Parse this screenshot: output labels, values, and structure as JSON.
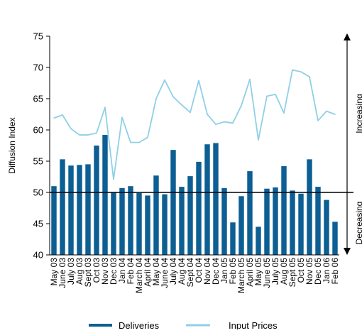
{
  "chart_data": {
    "type": "bar",
    "title": "",
    "xlabel": "",
    "ylabel": "Diffusion Index",
    "ylim": [
      40,
      75
    ],
    "yticks": [
      40,
      45,
      50,
      55,
      60,
      65,
      70,
      75
    ],
    "baseline": 50,
    "grid": false,
    "legend_position": "bottom",
    "categories": [
      "May 03",
      "June 03",
      "July 03",
      "Aug 03",
      "Sept 03",
      "Oct 03",
      "Nov 03",
      "Dec 03",
      "Jan 04",
      "Feb 04",
      "March 04",
      "April 04",
      "May 04",
      "June 04",
      "July 04",
      "Aug 04",
      "Sept 04",
      "Oct 04",
      "Nov 04",
      "Dec 04",
      "Jan 05",
      "Feb 05",
      "March 05",
      "April 05",
      "May 05",
      "June 05",
      "July 05",
      "Aug 05",
      "Sept 05",
      "Oct 05",
      "Nov 05",
      "Dec 05",
      "Jan 06",
      "Feb 06"
    ],
    "series": [
      {
        "name": "Deliveries",
        "kind": "bar",
        "color": "#0d5f93",
        "values": [
          51.0,
          55.3,
          54.3,
          54.4,
          54.5,
          57.5,
          59.2,
          50.0,
          50.7,
          51.0,
          49.9,
          49.5,
          52.7,
          49.7,
          56.8,
          50.9,
          52.6,
          54.9,
          57.7,
          57.9,
          50.7,
          45.2,
          49.4,
          53.4,
          44.5,
          50.6,
          50.8,
          54.2,
          50.3,
          49.8,
          55.3,
          50.9,
          48.8,
          45.3
        ]
      },
      {
        "name": "Input Prices",
        "kind": "line",
        "color": "#8fd0e6",
        "values": [
          61.9,
          62.4,
          60.2,
          59.2,
          59.2,
          59.5,
          63.6,
          52.1,
          62.0,
          58.0,
          58.0,
          58.8,
          65.0,
          68.0,
          65.3,
          64.0,
          62.8,
          67.9,
          62.5,
          60.9,
          61.3,
          61.1,
          63.9,
          68.1,
          58.4,
          65.4,
          65.7,
          62.7,
          69.6,
          69.3,
          68.5,
          61.5,
          63.0,
          62.5
        ]
      }
    ],
    "side_labels": {
      "increasing": "Increasing",
      "decreasing": "Decreasing"
    }
  }
}
